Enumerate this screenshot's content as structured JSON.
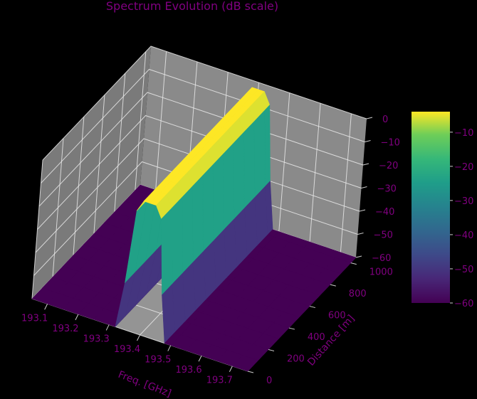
{
  "chart_data": {
    "type": "surface3d",
    "title": "Spectrum Evolution (dB scale)",
    "xlabel": "Freq. [GHz]",
    "ylabel": "Distance [m]",
    "zlabel": "",
    "x_ticks": [
      "193.1",
      "193.2",
      "193.3",
      "193.4",
      "193.5",
      "193.6",
      "193.7"
    ],
    "y_ticks": [
      "0",
      "200",
      "400",
      "600",
      "800",
      "1000"
    ],
    "z_ticks": [
      "0",
      "−10",
      "−20",
      "−30",
      "−40",
      "−50",
      "−60"
    ],
    "colorbar_ticks": [
      "−10",
      "−20",
      "−30",
      "−40",
      "−50",
      "−60"
    ],
    "xlim": [
      193.05,
      193.75
    ],
    "ylim": [
      0,
      1050
    ],
    "zlim": [
      -60,
      0
    ],
    "colorbar_range": [
      -60,
      -4
    ],
    "colormap": "viridis",
    "surface": {
      "description_free": true,
      "frequency_GHz": [
        193.05,
        193.1,
        193.15,
        193.2,
        193.25,
        193.3,
        193.32,
        193.34,
        193.36,
        193.38,
        193.4,
        193.42,
        193.44,
        193.46,
        193.48,
        193.5,
        193.55,
        193.6,
        193.65,
        193.7,
        193.75
      ],
      "distance_m": [
        0,
        100,
        200,
        300,
        400,
        500,
        600,
        700,
        800,
        900,
        1000,
        1050
      ],
      "power_dB_at_all_distances": [
        -60,
        -60,
        -60,
        -60,
        -60,
        -60,
        -60,
        -40,
        -8,
        -3,
        -3,
        -3,
        -8,
        -40,
        -60,
        -60,
        -60,
        -60,
        -60,
        -60,
        -60
      ]
    },
    "grid": true,
    "legend": "colorbar-right",
    "text_color": "#800080",
    "background": "#000000",
    "pane_color": "#808080"
  }
}
